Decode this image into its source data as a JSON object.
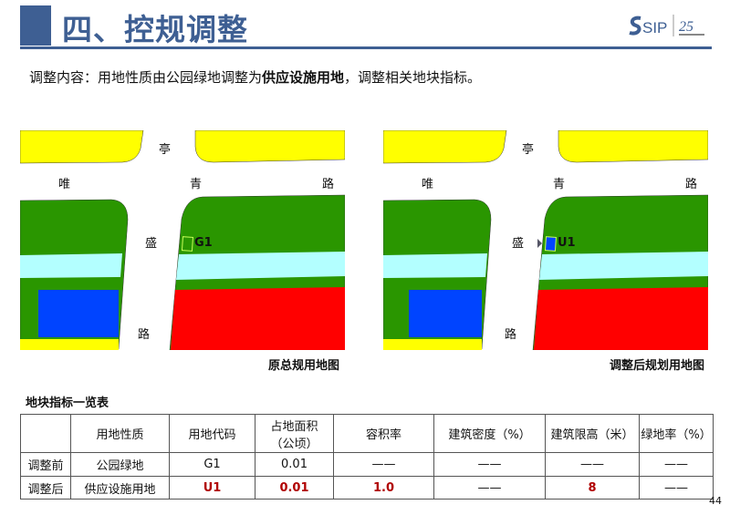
{
  "header": {
    "title": "四、控规调整",
    "logo_text": "SIP",
    "logo_mark": "25"
  },
  "intro": {
    "prefix": "调整内容：用地性质由公园绿地调整为",
    "bold": "供应设施用地",
    "suffix": "，调整相关地块指标。"
  },
  "maps": [
    {
      "caption": "原总规用地图",
      "plot_code": "G1",
      "plot_color": "#2a9600",
      "roads": {
        "n": "亭",
        "w": "唯",
        "c": "青",
        "e": "路",
        "mid": "盛",
        "s": "路"
      }
    },
    {
      "caption": "调整后规划用地图",
      "plot_code": "U1",
      "plot_color": "#0044ff",
      "roads": {
        "n": "亭",
        "w": "唯",
        "c": "青",
        "e": "路",
        "mid": "盛",
        "s": "路"
      }
    }
  ],
  "colors": {
    "green": "#2a9600",
    "yellow": "#ffff00",
    "cyan": "#b3ffff",
    "blue": "#0044ff",
    "red": "#ff0000",
    "header": "#3e5f93",
    "value_red": "#b00000"
  },
  "table": {
    "title": "地块指标一览表",
    "headers": [
      "",
      "用地性质",
      "用地代码",
      "占地面积（公顷）",
      "容积率",
      "建筑密度（%）",
      "建筑限高（米）",
      "绿地率（%）"
    ],
    "header_area_line1": "占地面积",
    "header_area_line2": "（公顷）",
    "rows": [
      {
        "label": "调整前",
        "cells": [
          "公园绿地",
          "G1",
          "0.01",
          "——",
          "——",
          "——",
          "——"
        ]
      },
      {
        "label": "调整后",
        "cells": [
          "供应设施用地",
          "U1",
          "0.01",
          "1.0",
          "——",
          "8",
          "——"
        ]
      }
    ]
  },
  "page_number": "44"
}
